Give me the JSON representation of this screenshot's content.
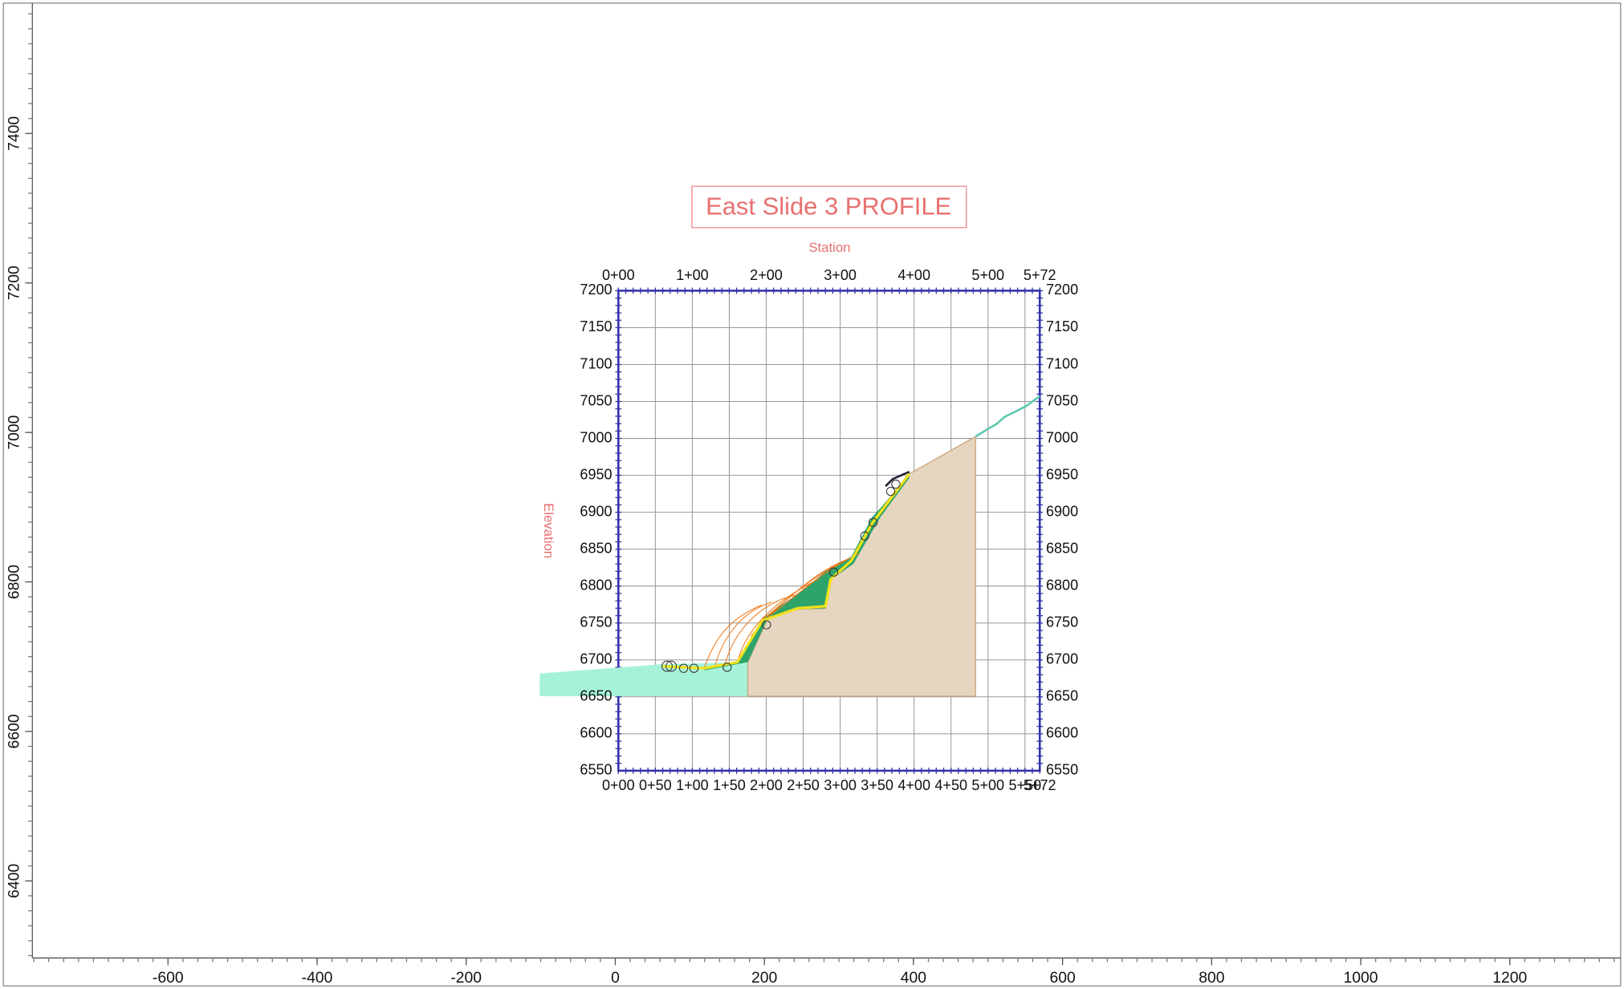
{
  "outer_axes": {
    "x_ticks": [
      -600,
      -400,
      -200,
      0,
      200,
      400,
      600,
      800,
      1000,
      1200
    ],
    "y_ticks": [
      6400,
      6600,
      6800,
      7000,
      7200,
      7400
    ]
  },
  "profile": {
    "title": "East Slide 3 PROFILE",
    "x_axis_label": "Station",
    "y_axis_label": "Elevation",
    "top_stations": [
      "0+00",
      "1+00",
      "2+00",
      "3+00",
      "4+00",
      "5+00",
      "5+72"
    ],
    "bottom_stations": [
      "0+00",
      "0+50",
      "1+00",
      "1+50",
      "2+00",
      "2+50",
      "3+00",
      "3+50",
      "4+00",
      "4+50",
      "5+00",
      "5+50",
      "5+72"
    ],
    "elevations": [
      7200,
      7150,
      7100,
      7050,
      7000,
      6950,
      6900,
      6850,
      6800,
      6750,
      6700,
      6650,
      6600,
      6550
    ]
  }
}
